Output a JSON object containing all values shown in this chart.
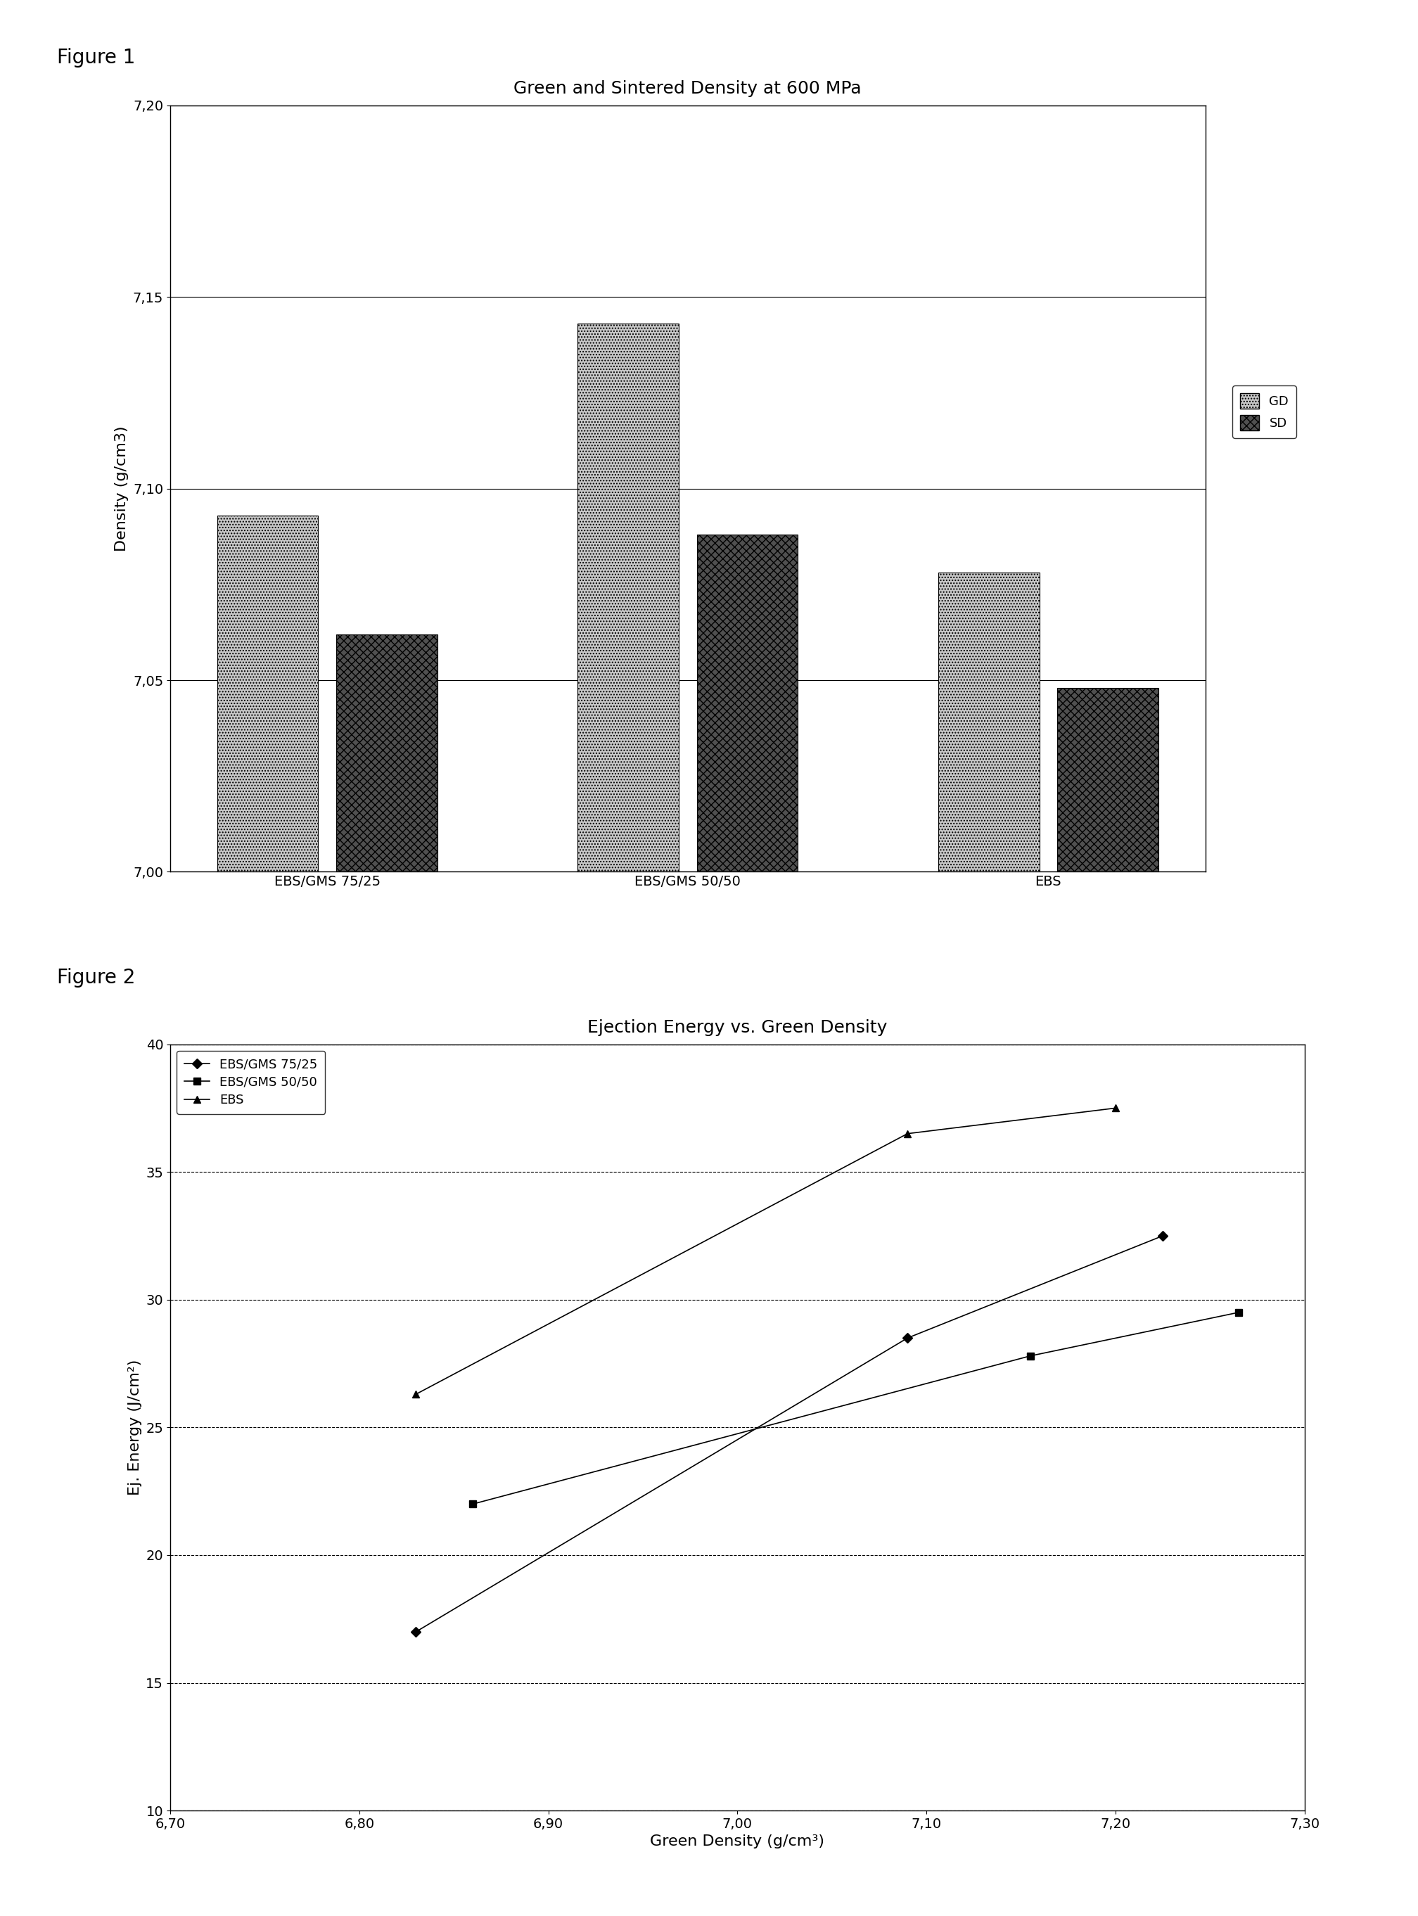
{
  "fig1": {
    "title": "Green and Sintered Density at 600 MPa",
    "ylabel": "Density (g/cm3)",
    "categories": [
      "EBS/GMS 75/25",
      "EBS/GMS 50/50",
      "EBS"
    ],
    "GD": [
      7.093,
      7.143,
      7.078
    ],
    "SD": [
      7.062,
      7.088,
      7.048
    ],
    "ylim": [
      7.0,
      7.2
    ],
    "yticks": [
      7.0,
      7.05,
      7.1,
      7.15,
      7.2
    ],
    "ytick_labels": [
      "7,00",
      "7,05",
      "7,10",
      "7,15",
      "7,20"
    ],
    "GD_hatch": "....",
    "SD_hatch": "///",
    "GD_color": "#c8c8c8",
    "SD_color": "#505050"
  },
  "fig2": {
    "title": "Ejection Energy vs. Green Density",
    "xlabel": "Green Density (g/cm³)",
    "ylabel": "Ej. Energy (J/cm²)",
    "series": {
      "EBS/GMS 75/25": {
        "x": [
          6.83,
          7.09,
          7.225
        ],
        "y": [
          17.0,
          28.5,
          32.5
        ]
      },
      "EBS/GMS 50/50": {
        "x": [
          6.86,
          7.155,
          7.265
        ],
        "y": [
          22.0,
          27.8,
          29.5
        ]
      },
      "EBS": {
        "x": [
          6.83,
          7.09,
          7.2
        ],
        "y": [
          26.3,
          36.5,
          37.5
        ]
      }
    },
    "xlim": [
      6.7,
      7.3
    ],
    "ylim": [
      10,
      40
    ],
    "yticks": [
      10,
      15,
      20,
      25,
      30,
      35,
      40
    ],
    "xticks": [
      6.7,
      6.8,
      6.9,
      7.0,
      7.1,
      7.2,
      7.3
    ],
    "xtick_labels": [
      "6,70",
      "6,80",
      "6,90",
      "7,00",
      "7,10",
      "7,20",
      "7,30"
    ]
  },
  "fig1_label": "Figure 1",
  "fig2_label": "Figure 2",
  "figure_label_fontsize": 20,
  "title_fontsize": 18,
  "tick_fontsize": 14,
  "axis_label_fontsize": 16,
  "legend_fontsize": 13,
  "background_color": "#ffffff"
}
